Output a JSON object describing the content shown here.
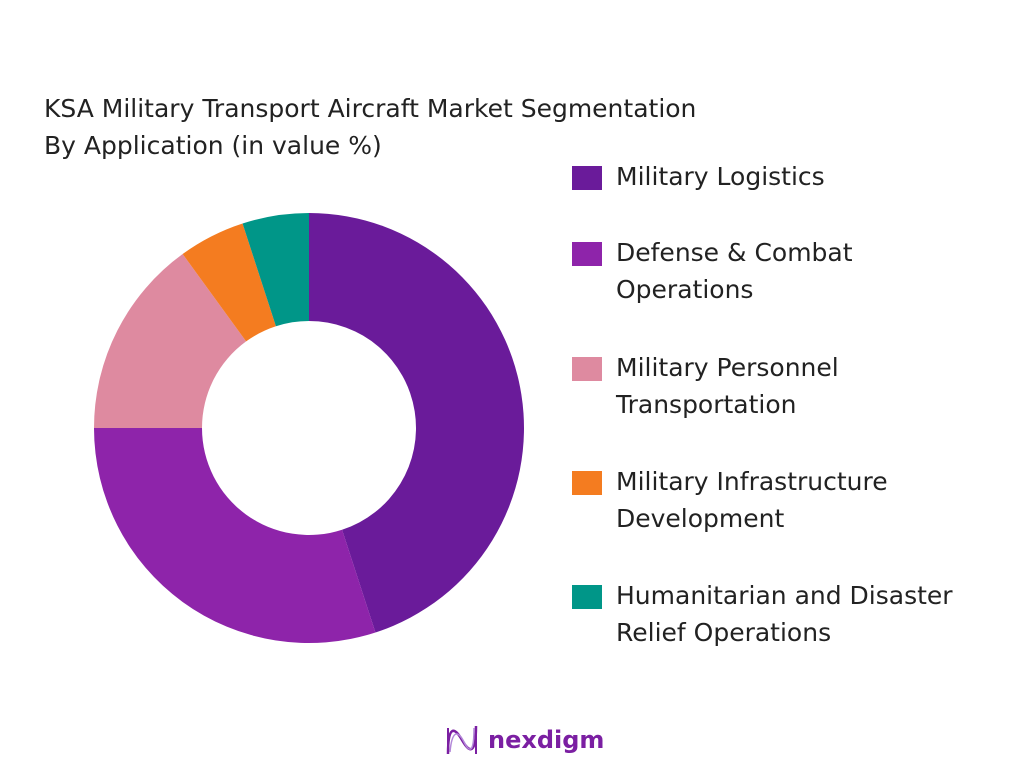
{
  "chart_data": {
    "type": "pie",
    "donut": true,
    "title": "KSA Military Transport Aircraft Market Segmentation",
    "subtitle": "By Application (in value %)",
    "legend_position": "right",
    "categories": [
      "Military Logistics",
      "Defense & Combat Operations",
      "Military Personnel Transportation",
      "Military Infrastructure Development",
      "Humanitarian and Disaster Relief Operations"
    ],
    "legend_lines": [
      [
        "Military Logistics"
      ],
      [
        "Defense & Combat",
        "Operations"
      ],
      [
        "Military Personnel",
        "Transportation"
      ],
      [
        "Military Infrastructure",
        "Development"
      ],
      [
        "Humanitarian and Disaster",
        "Relief Operations"
      ]
    ],
    "values": [
      45,
      30,
      15,
      5,
      5
    ],
    "colors": [
      "#6a1b9a",
      "#8e24aa",
      "#de8aa0",
      "#f47c20",
      "#009688"
    ]
  },
  "brand": {
    "name": "nexdigm",
    "color": "#7b1fa2"
  }
}
